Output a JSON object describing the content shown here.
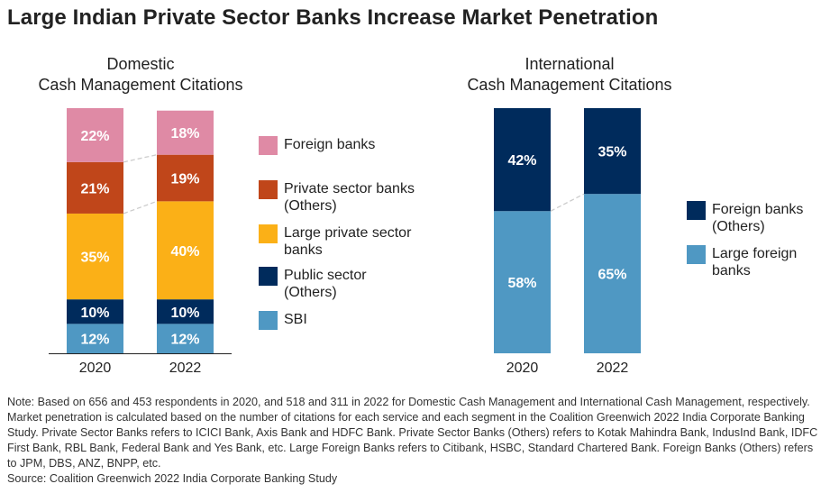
{
  "title": "Large Indian Private Sector Banks Increase Market Penetration",
  "chart_data": [
    {
      "type": "bar",
      "stacked": true,
      "title": "Domestic\nCash Management Citations",
      "title_lines": [
        "Domestic",
        "Cash Management Citations"
      ],
      "categories": [
        "2020",
        "2022"
      ],
      "ylim": [
        0,
        100
      ],
      "series": [
        {
          "name": "SBI",
          "values": [
            12,
            12
          ],
          "color": "#4f98c3"
        },
        {
          "name": "Public sector (Others)",
          "values": [
            10,
            10
          ],
          "color": "#002b5c"
        },
        {
          "name": "Large private sector banks",
          "values": [
            35,
            40
          ],
          "color": "#fbb017"
        },
        {
          "name": "Private sector banks (Others)",
          "values": [
            21,
            19
          ],
          "color": "#c0461a"
        },
        {
          "name": "Foreign banks",
          "values": [
            22,
            18
          ],
          "color": "#df8aa5"
        }
      ],
      "legend": [
        "Foreign banks",
        "Private sector banks (Others)",
        "Large private sector banks",
        "Public sector (Others)",
        "SBI"
      ]
    },
    {
      "type": "bar",
      "stacked": true,
      "title": "International\nCash Management Citations",
      "title_lines": [
        "International",
        "Cash Management Citations"
      ],
      "categories": [
        "2020",
        "2022"
      ],
      "ylim": [
        0,
        100
      ],
      "series": [
        {
          "name": "Large foreign banks",
          "values": [
            58,
            65
          ],
          "color": "#4f98c3"
        },
        {
          "name": "Foreign banks (Others)",
          "values": [
            42,
            35
          ],
          "color": "#002b5c"
        }
      ],
      "legend": [
        "Foreign banks (Others)",
        "Large foreign banks"
      ]
    }
  ],
  "legend_lines": {
    "dom": [
      [
        "Foreign banks"
      ],
      [
        "Private sector banks",
        "(Others)"
      ],
      [
        "Large private sector",
        "banks"
      ],
      [
        "Public sector",
        "(Others)"
      ],
      [
        "SBI"
      ]
    ],
    "intl": [
      [
        "Foreign banks",
        "(Others)"
      ],
      [
        "Large foreign",
        "banks"
      ]
    ]
  },
  "note": "Note: Based on 656 and 453 respondents in 2020, and 518 and 311 in 2022 for Domestic Cash Management and International Cash Management, respectively. Market penetration is calculated based on the number of citations for each service and each segment in the Coalition Greenwich 2022 India Corporate Banking Study. Private Sector Banks refers to ICICI Bank, Axis Bank and HDFC Bank. Private Sector Banks (Others) refers to Kotak Mahindra Bank, IndusInd Bank, IDFC First Bank, RBL Bank, Federal Bank and Yes Bank, etc. Large Foreign Banks refers to Citibank, HSBC, Standard Chartered Bank. Foreign Banks (Others) refers to JPM, DBS, ANZ, BNPP, etc.",
  "source": "Source: Coalition Greenwich 2022 India Corporate Banking Study"
}
